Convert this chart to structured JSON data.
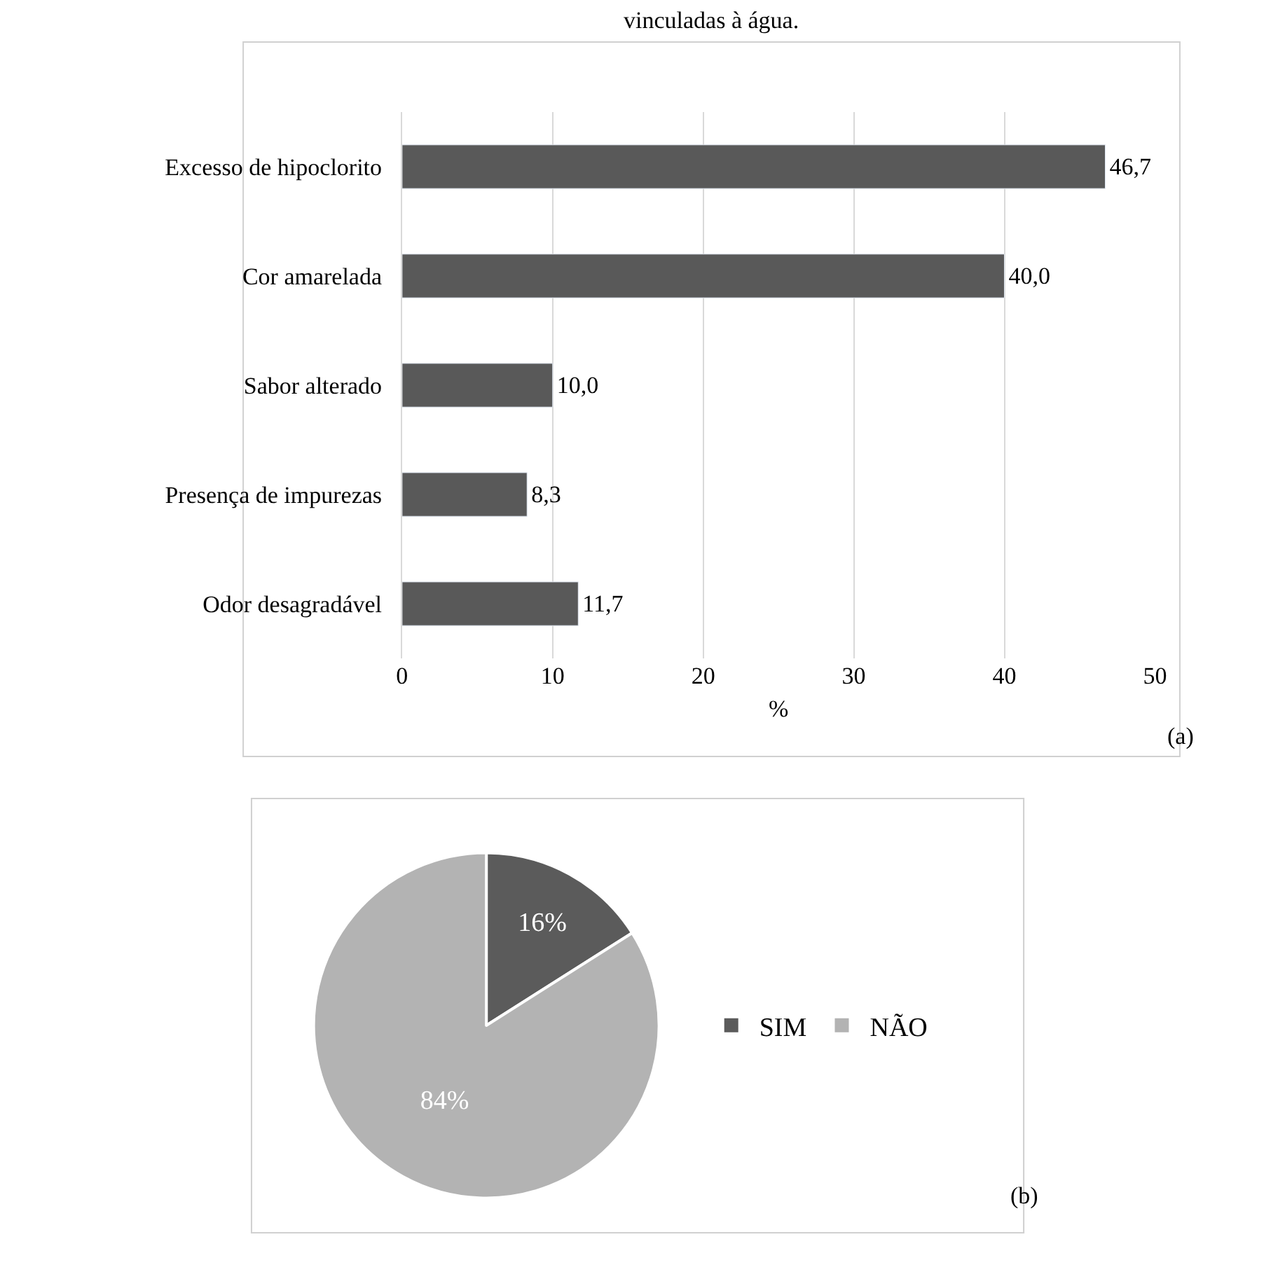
{
  "chart_data": [
    {
      "type": "bar",
      "title": "vinculadas à água.",
      "orientation": "horizontal",
      "categories": [
        "Excesso de hipoclorito",
        "Cor amarelada",
        "Sabor alterado",
        "Presença de impurezas",
        "Odor desagradável"
      ],
      "values": [
        46.7,
        40.0,
        10.0,
        8.3,
        11.7
      ],
      "value_labels": [
        "46,7",
        "40,0",
        "10,0",
        "8,3",
        "11,7"
      ],
      "color": "#595959",
      "xlabel": "%",
      "xlim": [
        0,
        50
      ],
      "xticks": [
        0,
        10,
        20,
        30,
        40,
        50
      ],
      "grid": "x",
      "legend": false,
      "annotations": [
        "(a)"
      ]
    },
    {
      "type": "pie",
      "categories": [
        "SIM",
        "NÃO"
      ],
      "values": [
        16,
        84
      ],
      "value_labels": [
        "16%",
        "84%"
      ],
      "colors": [
        "#5b5b5b",
        "#b3b3b3"
      ],
      "legend": "right",
      "annotations": [
        "(b)"
      ]
    }
  ]
}
